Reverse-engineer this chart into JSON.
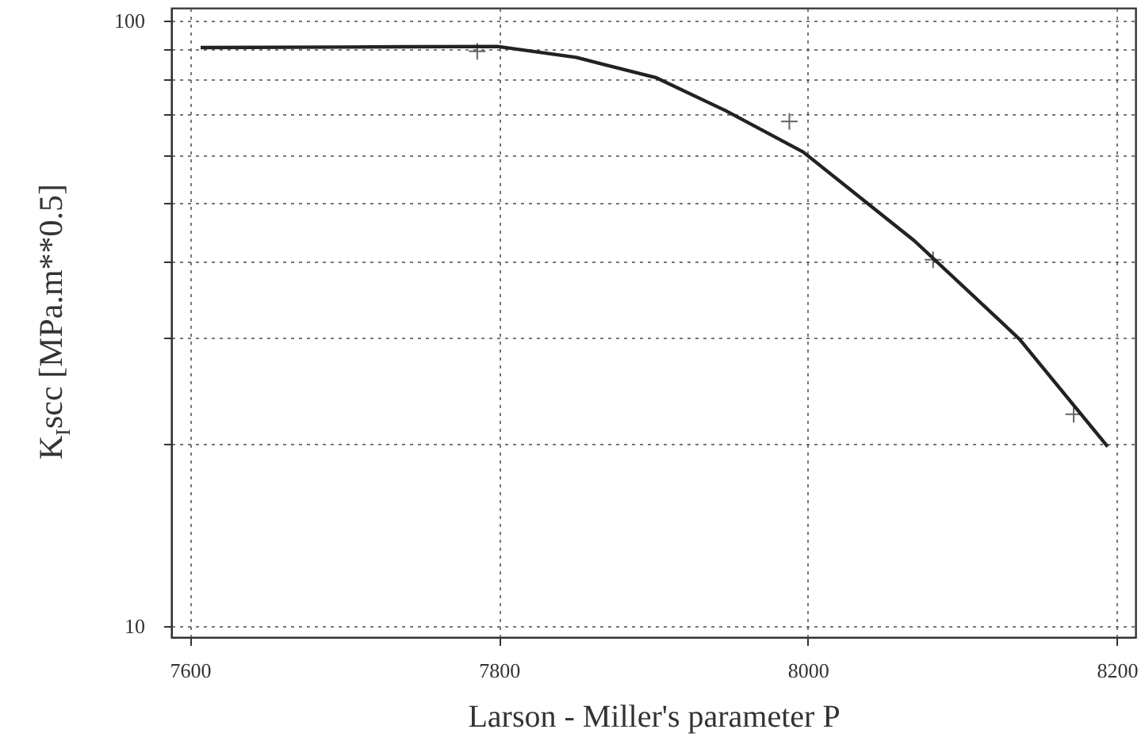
{
  "chart_data": {
    "type": "line",
    "xlabel": "Larson - Miller's parameter P",
    "ylabel": "K$_{I}$scc [MPa.m**0.5]",
    "xlim": [
      7588,
      8212
    ],
    "xticks": [
      7600,
      7800,
      8000,
      8200
    ],
    "ylim": [
      9.6,
      105
    ],
    "yticks": [
      10,
      {
        "value": 20,
        "label": null
      },
      {
        "value": 30,
        "label": null
      },
      {
        "value": 40,
        "label": null
      },
      {
        "value": 50,
        "label": null
      },
      {
        "value": 60,
        "label": null
      },
      {
        "value": 70,
        "label": null
      },
      {
        "value": 80,
        "label": null
      },
      {
        "value": 90,
        "label": null
      },
      100
    ],
    "log": "y",
    "grid": true,
    "series": [
      {
        "color": "#222222",
        "line_style": "solid",
        "marker": "none",
        "x": [
          7607,
          7700,
          7799,
          7850,
          7902,
          7947,
          7997,
          8069,
          8137,
          8194
        ],
        "values": [
          90.3,
          90.5,
          90.7,
          87,
          80.5,
          71,
          60.7,
          43.3,
          29.8,
          19.8
        ]
      },
      {
        "type": "scatter",
        "color": "#222222",
        "marker": "cross",
        "x": [
          7786,
          7988,
          8081,
          8172
        ],
        "values": [
          89,
          68.2,
          40.3,
          22.4
        ]
      }
    ]
  }
}
